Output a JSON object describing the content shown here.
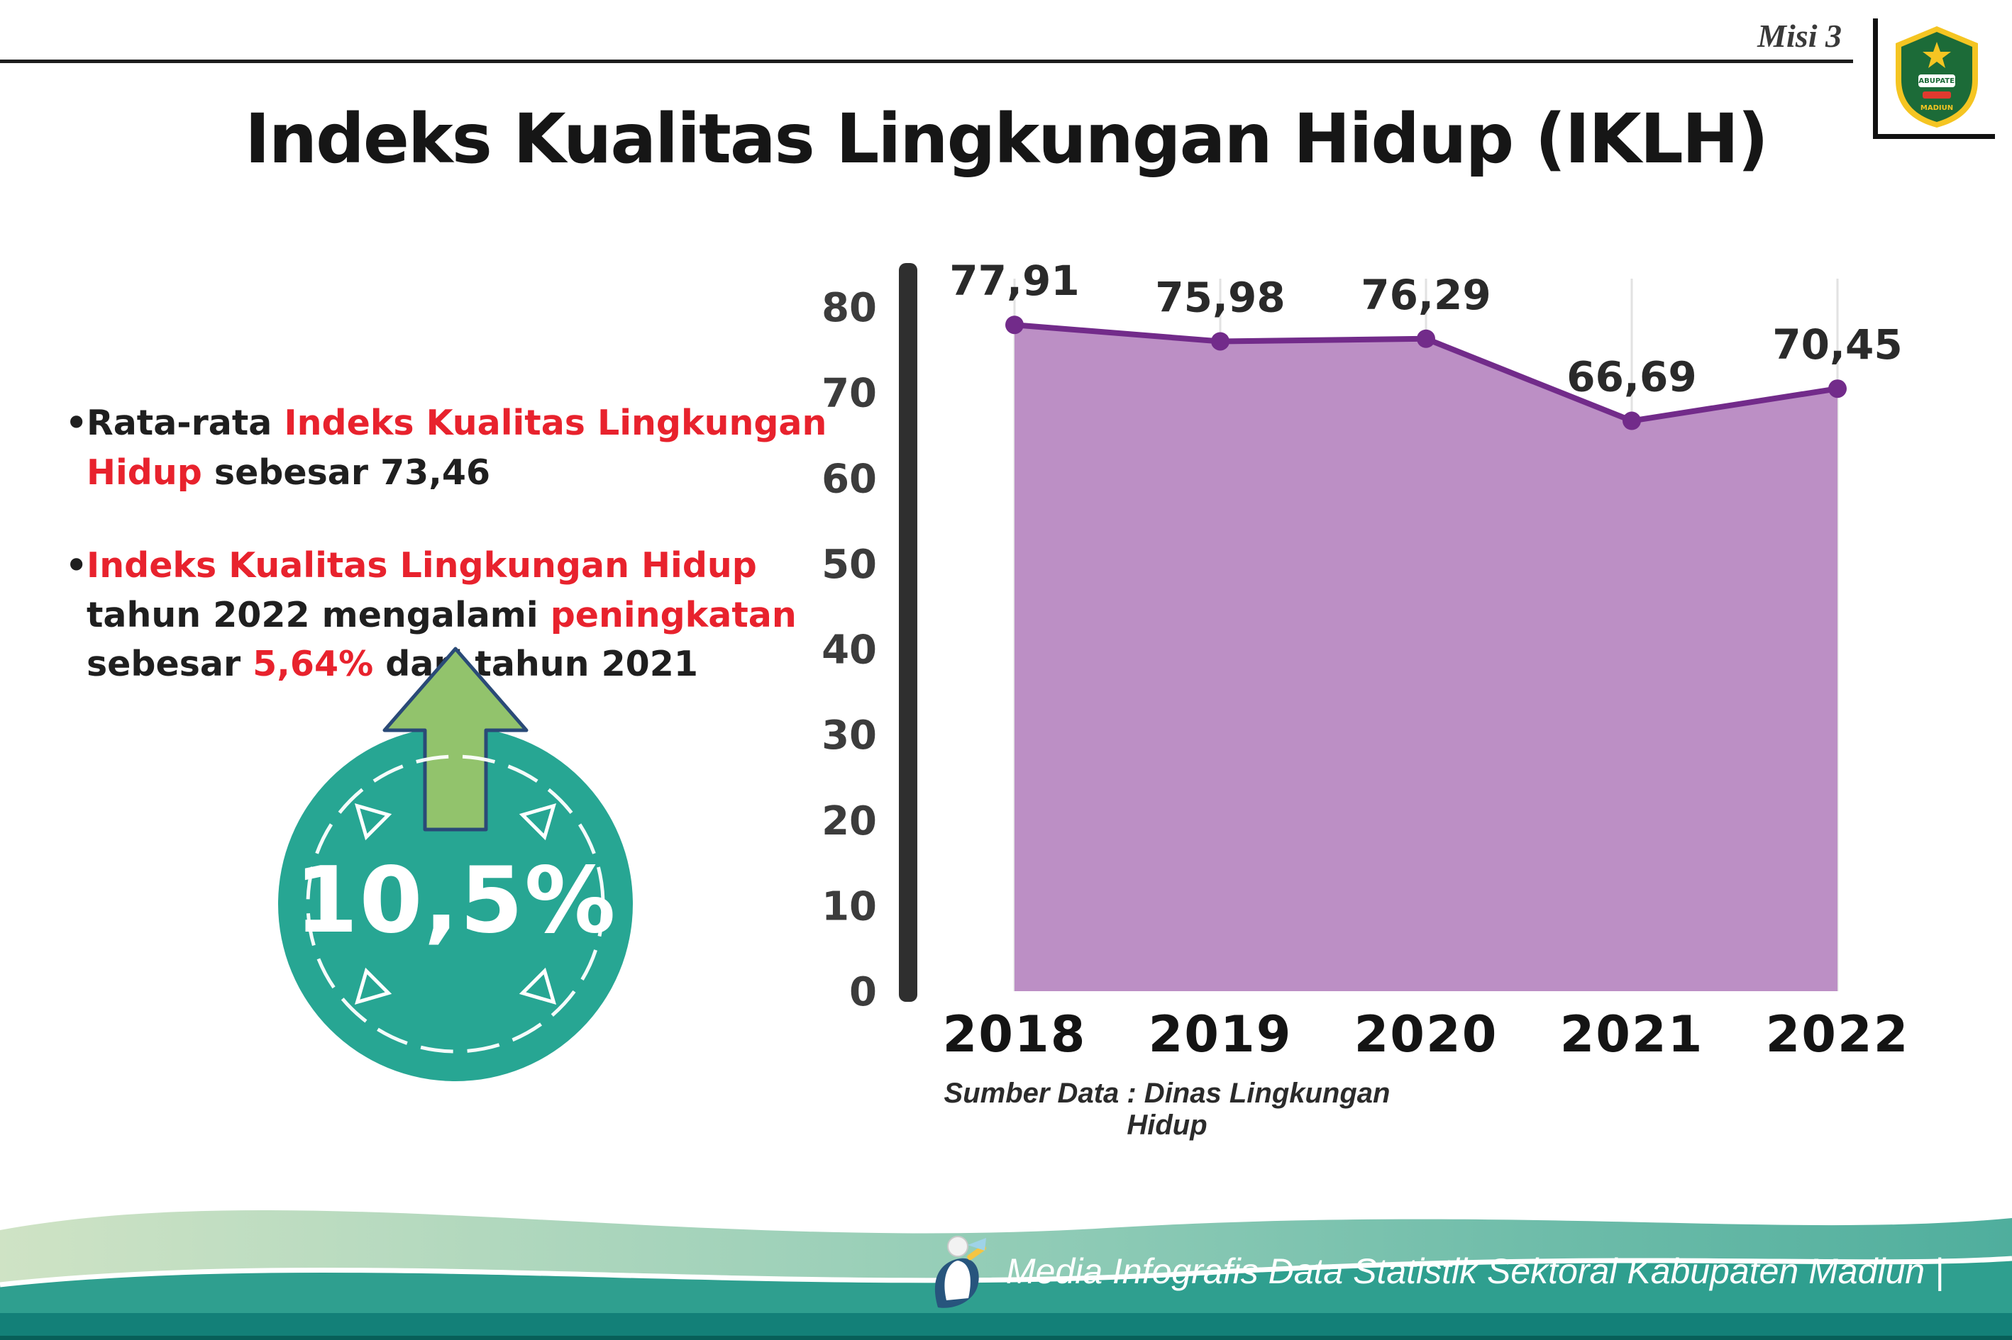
{
  "header": {
    "misi": "Misi 3",
    "title": "Indeks Kualitas Lingkungan Hidup (IKLH)",
    "logo_top": "KABUPATEN",
    "logo_bottom": "MADIUN"
  },
  "bullets": [
    {
      "segments": [
        {
          "text": "Rata-rata ",
          "color": "dark"
        },
        {
          "text": "Indeks Kualitas Lingkungan Hidup",
          "color": "red"
        },
        {
          "text": " sebesar 73,46",
          "color": "dark"
        }
      ]
    },
    {
      "segments": [
        {
          "text": "Indeks Kualitas Lingkungan Hidup",
          "color": "red"
        },
        {
          "text": " tahun 2022 mengalami ",
          "color": "dark"
        },
        {
          "text": "peningkatan",
          "color": "red"
        },
        {
          "text": " sebesar ",
          "color": "dark"
        },
        {
          "text": "5,64%",
          "color": "red"
        },
        {
          "text": " dari tahun 2021",
          "color": "dark"
        }
      ]
    }
  ],
  "badge": {
    "value": "10,5%",
    "direction": "up",
    "circle_color": "#27a693",
    "arrow_color": "#92c36c"
  },
  "chart_data": {
    "type": "area",
    "categories": [
      "2018",
      "2019",
      "2020",
      "2021",
      "2022"
    ],
    "values": [
      77.91,
      75.98,
      76.29,
      66.69,
      70.45
    ],
    "value_labels": [
      "77,91",
      "75,98",
      "76,29",
      "66,69",
      "70,45"
    ],
    "title": "",
    "xlabel": "",
    "ylabel": "",
    "ylim": [
      0,
      80
    ],
    "ytick_step": 10,
    "grid": "vertical-light",
    "legend": "none",
    "line_color": "#722b8a",
    "area_color": "#bc8fc5",
    "point_color": "#722b8a",
    "source": "Sumber Data : Dinas Lingkungan Hidup"
  },
  "footer": {
    "text": "Media Infografis Data Statistik Sektoral Kabupaten Madiun |"
  },
  "colors": {
    "accent_red": "#e8222d",
    "footer_teal": "#2f9f8f",
    "footer_light_green": "#cfe3c5",
    "axis_dark": "#2f2f2f"
  }
}
